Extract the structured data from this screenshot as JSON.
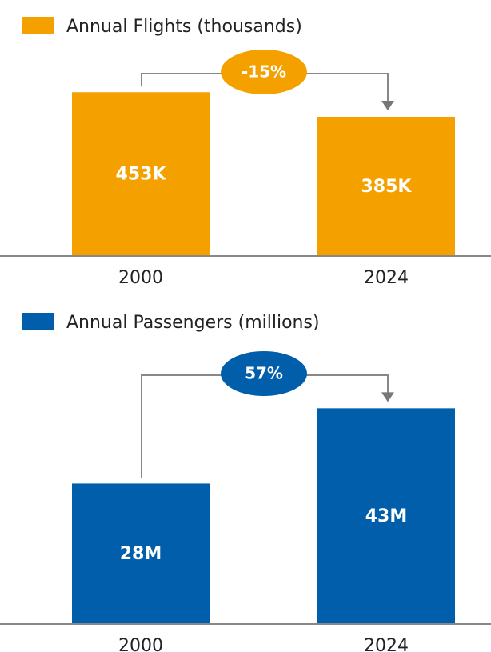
{
  "chart_data": [
    {
      "type": "bar",
      "categories": [
        "2000",
        "2024"
      ],
      "series": [
        {
          "name": "Annual Flights (thousands)",
          "color": "#f4a100",
          "values": [
            453,
            385
          ],
          "value_labels": [
            "453K",
            "385K"
          ]
        }
      ],
      "annotation": "-15%",
      "ylim": [
        0,
        500
      ]
    },
    {
      "type": "bar",
      "categories": [
        "2000",
        "2024"
      ],
      "series": [
        {
          "name": "Annual Passengers (millions)",
          "color": "#005eaa",
          "values": [
            28,
            43
          ],
          "value_labels": [
            "28M",
            "43M"
          ]
        }
      ],
      "annotation": "57%",
      "ylim": [
        0,
        48
      ]
    }
  ]
}
